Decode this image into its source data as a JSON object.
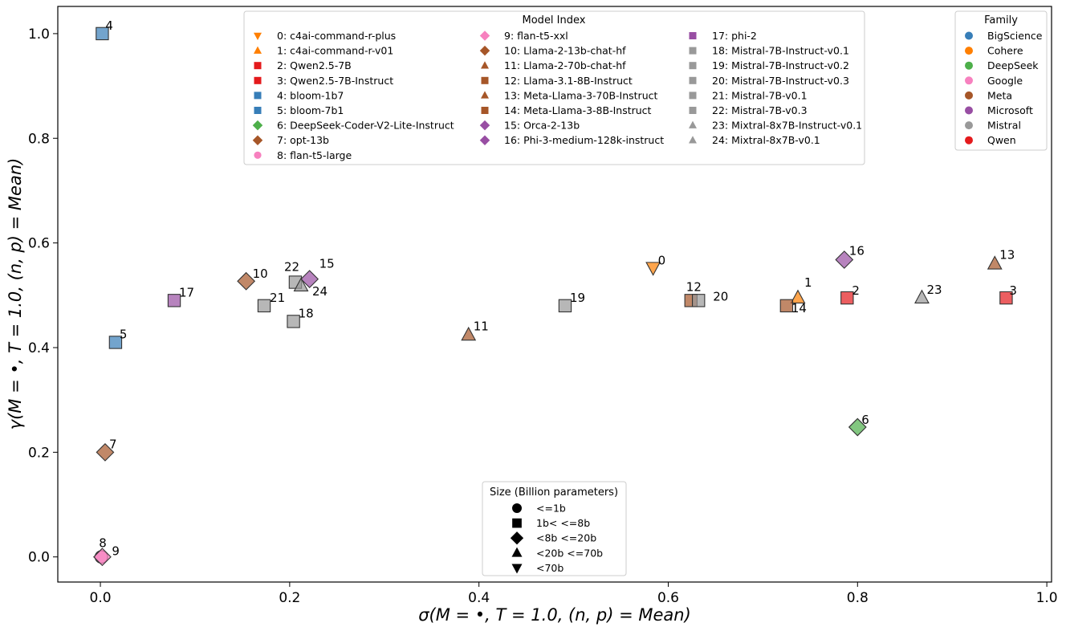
{
  "chart_data": {
    "type": "scatter",
    "xlabel": "σ(M = •, T = 1.0, (n, p) = Mean)",
    "ylabel": "γ(M = •, T = 1.0, (n, p) = Mean)",
    "xlim": [
      -0.045,
      1.005
    ],
    "ylim": [
      -0.048,
      1.052
    ],
    "xticks": [
      0.0,
      0.2,
      0.4,
      0.6,
      0.8,
      1.0
    ],
    "xtick_labels": [
      "0.0",
      "0.2",
      "0.4",
      "0.6",
      "0.8",
      "1.0"
    ],
    "yticks": [
      0.0,
      0.2,
      0.4,
      0.6,
      0.8,
      1.0
    ],
    "ytick_labels": [
      "0.0",
      "0.2",
      "0.4",
      "0.6",
      "0.8",
      "1.0"
    ],
    "grid": false,
    "family_colors": {
      "BigScience": "#377eb8",
      "Cohere": "#ff7f00",
      "DeepSeek": "#4daf4a",
      "Google": "#f781bf",
      "Meta": "#a65628",
      "Microsoft": "#984ea3",
      "Mistral": "#999999",
      "Qwen": "#e41a1c"
    },
    "size_markers": {
      "<=1b": "circle",
      "1b< <=8b": "square",
      "<8b <=20b": "diamond",
      "<20b <=70b": "triangle-up",
      "<70b": "triangle-down"
    },
    "points": [
      {
        "id": 0,
        "model": "c4ai-command-r-plus",
        "family": "Cohere",
        "size": "<70b",
        "x": 0.584,
        "y": 0.553,
        "label_dx": 6,
        "label_dy": -4
      },
      {
        "id": 1,
        "model": "c4ai-command-r-v01",
        "family": "Cohere",
        "size": "<20b <=70b",
        "x": 0.737,
        "y": 0.495,
        "label_dx": 8,
        "label_dy": -14
      },
      {
        "id": 2,
        "model": "Qwen2.5-7B",
        "family": "Qwen",
        "size": "1b< <=8b",
        "x": 0.789,
        "y": 0.495,
        "label_dx": 6,
        "label_dy": -4
      },
      {
        "id": 3,
        "model": "Qwen2.5-7B-Instruct",
        "family": "Qwen",
        "size": "1b< <=8b",
        "x": 0.957,
        "y": 0.495,
        "label_dx": 4,
        "label_dy": -4
      },
      {
        "id": 4,
        "model": "bloom-1b7",
        "family": "BigScience",
        "size": "1b< <=8b",
        "x": 0.002,
        "y": 1.0,
        "label_dx": 4,
        "label_dy": -5
      },
      {
        "id": 5,
        "model": "bloom-7b1",
        "family": "BigScience",
        "size": "1b< <=8b",
        "x": 0.016,
        "y": 0.41,
        "label_dx": 5,
        "label_dy": -5
      },
      {
        "id": 6,
        "model": "DeepSeek-Coder-V2-Lite-Instruct",
        "family": "DeepSeek",
        "size": "<8b <=20b",
        "x": 0.8,
        "y": 0.248,
        "label_dx": 5,
        "label_dy": -4
      },
      {
        "id": 7,
        "model": "opt-13b",
        "family": "Meta",
        "size": "<8b <=20b",
        "x": 0.005,
        "y": 0.2,
        "label_dx": 5,
        "label_dy": -5
      },
      {
        "id": 8,
        "model": "flan-t5-large",
        "family": "Google",
        "size": "<=1b",
        "x": 0.001,
        "y": 0.0,
        "label_dx": -3,
        "label_dy": -12
      },
      {
        "id": 9,
        "model": "flan-t5-xxl",
        "family": "Google",
        "size": "<8b <=20b",
        "x": 0.002,
        "y": 0.0,
        "label_dx": 12,
        "label_dy": -2
      },
      {
        "id": 10,
        "model": "Llama-2-13b-chat-hf",
        "family": "Meta",
        "size": "<8b <=20b",
        "x": 0.154,
        "y": 0.527,
        "label_dx": 8,
        "label_dy": -4
      },
      {
        "id": 11,
        "model": "Llama-2-70b-chat-hf",
        "family": "Meta",
        "size": "<20b <=70b",
        "x": 0.389,
        "y": 0.424,
        "label_dx": 6,
        "label_dy": -6
      },
      {
        "id": 12,
        "model": "Llama-3.1-8B-Instruct",
        "family": "Meta",
        "size": "1b< <=8b",
        "x": 0.624,
        "y": 0.49,
        "label_dx": -6,
        "label_dy": -12
      },
      {
        "id": 13,
        "model": "Meta-Llama-3-70B-Instruct",
        "family": "Meta",
        "size": "<20b <=70b",
        "x": 0.945,
        "y": 0.56,
        "label_dx": 6,
        "label_dy": -6
      },
      {
        "id": 14,
        "model": "Meta-Llama-3-8B-Instruct",
        "family": "Meta",
        "size": "1b< <=8b",
        "x": 0.725,
        "y": 0.48,
        "label_dx": 6,
        "label_dy": 8
      },
      {
        "id": 15,
        "model": "Orca-2-13b",
        "family": "Microsoft",
        "size": "<8b <=20b",
        "x": 0.221,
        "y": 0.531,
        "label_dx": 12,
        "label_dy": -14
      },
      {
        "id": 16,
        "model": "Phi-3-medium-128k-instruct",
        "family": "Microsoft",
        "size": "<8b <=20b",
        "x": 0.786,
        "y": 0.568,
        "label_dx": 6,
        "label_dy": -6
      },
      {
        "id": 17,
        "model": "phi-2",
        "family": "Microsoft",
        "size": "1b< <=8b",
        "x": 0.078,
        "y": 0.49,
        "label_dx": 6,
        "label_dy": -5
      },
      {
        "id": 18,
        "model": "Mistral-7B-Instruct-v0.1",
        "family": "Mistral",
        "size": "1b< <=8b",
        "x": 0.204,
        "y": 0.45,
        "label_dx": 6,
        "label_dy": -5
      },
      {
        "id": 19,
        "model": "Mistral-7B-Instruct-v0.2",
        "family": "Mistral",
        "size": "1b< <=8b",
        "x": 0.491,
        "y": 0.48,
        "label_dx": 6,
        "label_dy": -5
      },
      {
        "id": 20,
        "model": "Mistral-7B-Instruct-v0.3",
        "family": "Mistral",
        "size": "1b< <=8b",
        "x": 0.632,
        "y": 0.49,
        "label_dx": 18,
        "label_dy": 0
      },
      {
        "id": 21,
        "model": "Mistral-7B-v0.1",
        "family": "Mistral",
        "size": "1b< <=8b",
        "x": 0.173,
        "y": 0.48,
        "label_dx": 7,
        "label_dy": -5
      },
      {
        "id": 22,
        "model": "Mistral-7B-v0.3",
        "family": "Mistral",
        "size": "1b< <=8b",
        "x": 0.206,
        "y": 0.525,
        "label_dx": -14,
        "label_dy": -14
      },
      {
        "id": 23,
        "model": "Mixtral-8x7B-Instruct-v0.1",
        "family": "Mistral",
        "size": "<20b <=70b",
        "x": 0.868,
        "y": 0.495,
        "label_dx": 6,
        "label_dy": -5
      },
      {
        "id": 24,
        "model": "Mixtral-8x7B-v0.1",
        "family": "Mistral",
        "size": "<20b <=70b",
        "x": 0.212,
        "y": 0.518,
        "label_dx": 14,
        "label_dy": 12
      }
    ],
    "legend_model_index": {
      "title": "Model Index",
      "placement": "top-center",
      "entries": [
        "0: c4ai-command-r-plus",
        "1: c4ai-command-r-v01",
        "2: Qwen2.5-7B",
        "3: Qwen2.5-7B-Instruct",
        "4: bloom-1b7",
        "5: bloom-7b1",
        "6: DeepSeek-Coder-V2-Lite-Instruct",
        "7: opt-13b",
        "8: flan-t5-large",
        "9: flan-t5-xxl",
        "10: Llama-2-13b-chat-hf",
        "11: Llama-2-70b-chat-hf",
        "12: Llama-3.1-8B-Instruct",
        "13: Meta-Llama-3-70B-Instruct",
        "14: Meta-Llama-3-8B-Instruct",
        "15: Orca-2-13b",
        "16: Phi-3-medium-128k-instruct",
        "17: phi-2",
        "18: Mistral-7B-Instruct-v0.1",
        "19: Mistral-7B-Instruct-v0.2",
        "20: Mistral-7B-Instruct-v0.3",
        "21: Mistral-7B-v0.1",
        "22: Mistral-7B-v0.3",
        "23: Mixtral-8x7B-Instruct-v0.1",
        "24: Mixtral-8x7B-v0.1"
      ]
    },
    "legend_family": {
      "title": "Family",
      "placement": "top-right",
      "entries": [
        "BigScience",
        "Cohere",
        "DeepSeek",
        "Google",
        "Meta",
        "Microsoft",
        "Mistral",
        "Qwen"
      ]
    },
    "legend_size": {
      "title": "Size (Billion parameters)",
      "placement": "bottom-center",
      "entries": [
        "<=1b",
        "1b< <=8b",
        "<8b <=20b",
        "<20b <=70b",
        "<70b"
      ]
    }
  }
}
